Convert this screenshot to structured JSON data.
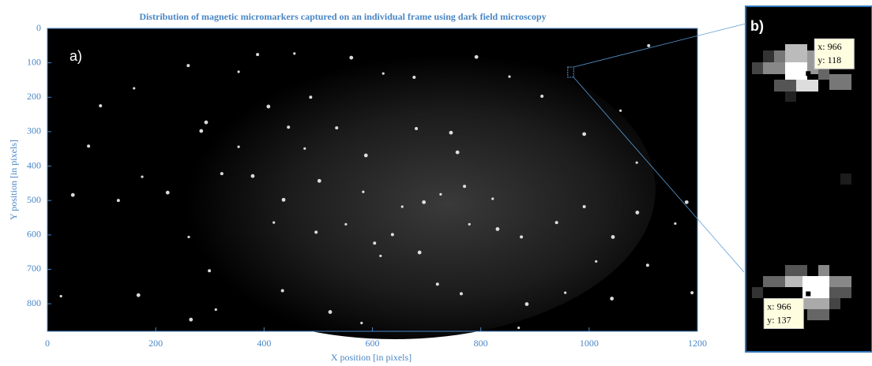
{
  "chart_data": {
    "type": "scatter",
    "title": "Distribution of magnetic micromarkers captured on an individual frame using dark field microscopy",
    "x_label": "X position [in pixels]",
    "y_label": "Y position [in pixels]",
    "panel_a": "a)",
    "panel_b": "b)",
    "xlim": [
      0,
      1200
    ],
    "ylim": [
      0,
      880
    ],
    "y_reversed": true,
    "xticks": [
      0,
      200,
      400,
      600,
      800,
      1000,
      1200
    ],
    "yticks": [
      0,
      100,
      200,
      300,
      400,
      500,
      600,
      700,
      800
    ],
    "color": "#ffffff",
    "x": [
      160,
      260,
      293,
      353,
      388,
      408,
      456,
      486,
      561,
      620,
      677,
      792,
      853,
      913,
      991,
      1058,
      1110,
      1180,
      1159,
      1108,
      1042,
      956,
      940,
      831,
      822,
      770,
      757,
      726,
      681,
      745,
      655,
      637,
      588,
      583,
      534,
      502,
      475,
      445,
      379,
      353,
      322,
      284,
      261,
      299,
      222,
      175,
      131,
      168,
      311,
      434,
      522,
      580,
      720,
      687,
      615,
      496,
      436,
      551,
      604,
      695,
      779,
      875,
      885,
      1013,
      991,
      1089,
      1088,
      1190,
      47,
      25,
      98,
      265,
      418,
      764,
      1044,
      870,
      76
    ],
    "values": [
      174,
      108,
      273,
      126,
      76,
      227,
      73,
      200,
      85,
      131,
      142,
      83,
      140,
      197,
      307,
      239,
      50,
      505,
      567,
      688,
      785,
      768,
      564,
      583,
      495,
      459,
      360,
      482,
      291,
      303,
      518,
      599,
      369,
      475,
      289,
      443,
      349,
      287,
      429,
      344,
      422,
      298,
      606,
      704,
      477,
      431,
      500,
      775,
      817,
      762,
      824,
      856,
      743,
      651,
      661,
      592,
      498,
      569,
      624,
      505,
      569,
      606,
      801,
      677,
      518,
      535,
      390,
      768,
      484,
      778,
      225,
      846,
      564,
      771,
      606,
      870,
      342
    ],
    "zoom": {
      "xlim": [
        960.6,
        971.5
      ],
      "ylim": [
        112.2,
        142
      ]
    },
    "datatips": [
      {
        "x": 966,
        "y": 118,
        "x_label": "x: 966",
        "y_label": "y: 118"
      },
      {
        "x": 966,
        "y": 137,
        "x_label": "x: 966",
        "y_label": "y: 137"
      }
    ]
  }
}
